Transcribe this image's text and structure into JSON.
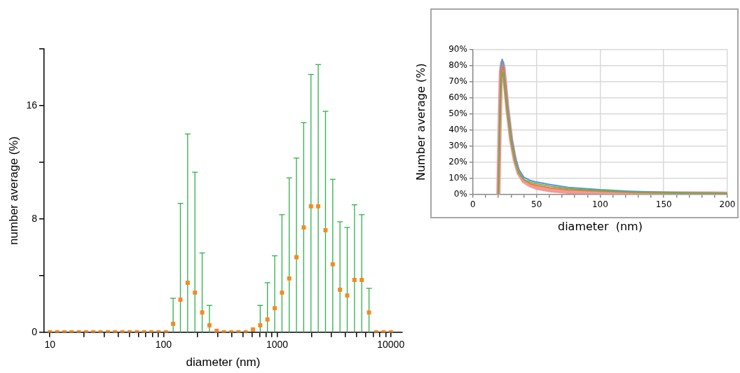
{
  "chart_data": [
    {
      "type": "scatter",
      "xlabel": "diameter (nm)",
      "ylabel": "number average (%)",
      "log": "x",
      "marker": "square",
      "color": "#f58a1f",
      "x": [
        10,
        11.6,
        13.4,
        15.5,
        18,
        20.8,
        24.1,
        27.9,
        32.4,
        37.5,
        43.4,
        50.3,
        58.3,
        67.5,
        78.2,
        90.6,
        105,
        121.5,
        140.8,
        163.1,
        188.9,
        218.8,
        253.4,
        293.6,
        340.1,
        393.9,
        456.2,
        528.5,
        612.2,
        709.1,
        821.3,
        951.3,
        1102,
        1276,
        1478,
        1712,
        1983,
        2297,
        2661,
        3082,
        3570,
        4135,
        4790,
        5548,
        6426,
        7443,
        8621,
        10000
      ],
      "values": [
        0,
        0,
        0,
        0,
        0,
        0,
        0,
        0,
        0,
        0,
        0,
        0,
        0,
        0,
        0,
        0,
        0,
        0.6,
        2.3,
        3.5,
        2.8,
        1.4,
        0.5,
        0.1,
        0,
        0,
        0,
        0,
        0.2,
        0.5,
        0.9,
        1.7,
        2.8,
        3.8,
        5.3,
        7.4,
        8.9,
        8.9,
        7.2,
        4.8,
        3.0,
        2.6,
        3.7,
        3.7,
        1.4,
        0,
        0,
        0
      ],
      "errors": [
        null,
        null,
        null,
        null,
        null,
        null,
        null,
        null,
        null,
        null,
        null,
        null,
        null,
        null,
        null,
        null,
        null,
        [
          0,
          2.4
        ],
        [
          0,
          9.1
        ],
        [
          0,
          14.0
        ],
        [
          0,
          11.3
        ],
        [
          0,
          5.6
        ],
        [
          0,
          1.9
        ],
        null,
        null,
        null,
        null,
        null,
        null,
        [
          0,
          1.9
        ],
        [
          0,
          3.5
        ],
        [
          0,
          5.4
        ],
        [
          0,
          8.3
        ],
        [
          0,
          10.9
        ],
        [
          0,
          12.3
        ],
        [
          0,
          14.8
        ],
        [
          0,
          18.2
        ],
        [
          0,
          18.9
        ],
        [
          0,
          15.6
        ],
        [
          0,
          10.8
        ],
        [
          0,
          7.8
        ],
        [
          0,
          7.4
        ],
        [
          0,
          9.0
        ],
        [
          0,
          8.3
        ],
        [
          0,
          3.1
        ],
        null,
        null,
        null
      ],
      "xlim": [
        8.9,
        12600
      ],
      "xticks": [
        10,
        {
          "value": 20,
          "label": null
        },
        {
          "value": 30,
          "label": null
        },
        {
          "value": 40,
          "label": null
        },
        {
          "value": 50,
          "label": null
        },
        {
          "value": 60,
          "label": null
        },
        {
          "value": 70,
          "label": null
        },
        {
          "value": 80,
          "label": null
        },
        {
          "value": 90,
          "label": null
        },
        100,
        {
          "value": 200,
          "label": null
        },
        {
          "value": 300,
          "label": null
        },
        {
          "value": 400,
          "label": null
        },
        {
          "value": 500,
          "label": null
        },
        {
          "value": 600,
          "label": null
        },
        {
          "value": 700,
          "label": null
        },
        {
          "value": 800,
          "label": null
        },
        {
          "value": 900,
          "label": null
        },
        1000,
        {
          "value": 2000,
          "label": null
        },
        {
          "value": 3000,
          "label": null
        },
        {
          "value": 4000,
          "label": null
        },
        {
          "value": 5000,
          "label": null
        },
        {
          "value": 6000,
          "label": null
        },
        {
          "value": 7000,
          "label": null
        },
        {
          "value": 8000,
          "label": null
        },
        {
          "value": 9000,
          "label": null
        },
        10000
      ],
      "ylim": [
        0,
        20
      ],
      "yticks": [
        0,
        {
          "value": 4,
          "label": null
        },
        8,
        {
          "value": 12,
          "label": null
        },
        16,
        {
          "value": 20,
          "label": null
        }
      ]
    },
    {
      "type": "line",
      "xlabel": "diameter  (nm)",
      "ylabel": "Number average (%)",
      "grid": true,
      "marker": "none",
      "series": [
        {
          "color": "#5b9bd5",
          "x": [
            20,
            21,
            22,
            23,
            24,
            25,
            27,
            30,
            33,
            36,
            40,
            45,
            50,
            60,
            75,
            100,
            125,
            150,
            175,
            200
          ],
          "values": [
            0,
            46,
            79,
            84,
            81,
            73,
            57,
            37,
            24,
            15.5,
            10.5,
            8.5,
            7.5,
            6,
            4.2,
            2.7,
            1.7,
            1.1,
            0.8,
            0.6
          ]
        },
        {
          "color": "#ed7d31",
          "x": [
            20,
            21,
            22,
            23,
            24,
            25,
            27,
            30,
            33,
            36,
            40,
            45,
            50,
            60,
            75,
            100,
            125,
            150,
            175,
            200
          ],
          "values": [
            0,
            40,
            73,
            80,
            77,
            69,
            53,
            34,
            21.5,
            13.5,
            9,
            6.5,
            5.5,
            4,
            2.7,
            1.8,
            1.1,
            0.7,
            0.5,
            0.4
          ]
        },
        {
          "color": "#70ad47",
          "x": [
            20,
            21,
            22,
            23,
            24,
            25,
            27,
            30,
            33,
            36,
            40,
            45,
            50,
            60,
            75,
            100,
            125,
            150,
            175,
            200
          ],
          "values": [
            0,
            34,
            66,
            76,
            73,
            65,
            50,
            32,
            20,
            13,
            9,
            7.5,
            6.5,
            5,
            3.4,
            2.2,
            1.3,
            0.9,
            0.6,
            0.4
          ]
        },
        {
          "color": "#f19a9a",
          "x": [
            20,
            21,
            22,
            23,
            24,
            25,
            27,
            30,
            33,
            36,
            40,
            45,
            50,
            60,
            75,
            100,
            125,
            150,
            175,
            200
          ],
          "values": [
            0,
            42,
            76,
            82,
            79,
            71,
            54,
            34,
            21,
            13,
            8,
            5.5,
            4,
            2.5,
            1.5,
            1,
            0.7,
            0.5,
            0.4,
            0.3
          ]
        }
      ],
      "xlim": [
        0,
        200
      ],
      "xticks": [
        0,
        {
          "value": 10,
          "label": null
        },
        {
          "value": 20,
          "label": null
        },
        {
          "value": 30,
          "label": null
        },
        {
          "value": 40,
          "label": null
        },
        50,
        {
          "value": 60,
          "label": null
        },
        {
          "value": 70,
          "label": null
        },
        {
          "value": 80,
          "label": null
        },
        {
          "value": 90,
          "label": null
        },
        100,
        {
          "value": 110,
          "label": null
        },
        {
          "value": 120,
          "label": null
        },
        {
          "value": 130,
          "label": null
        },
        {
          "value": 140,
          "label": null
        },
        150,
        {
          "value": 160,
          "label": null
        },
        {
          "value": 170,
          "label": null
        },
        {
          "value": 180,
          "label": null
        },
        {
          "value": 190,
          "label": null
        },
        200
      ],
      "ylim": [
        0,
        90
      ],
      "yticks": [
        {
          "value": 0,
          "label": "0%"
        },
        {
          "value": 10,
          "label": "10%"
        },
        {
          "value": 20,
          "label": "20%"
        },
        {
          "value": 30,
          "label": "30%"
        },
        {
          "value": 40,
          "label": "40%"
        },
        {
          "value": 50,
          "label": "50%"
        },
        {
          "value": 60,
          "label": "60%"
        },
        {
          "value": 70,
          "label": "70%"
        },
        {
          "value": 80,
          "label": "80%"
        },
        {
          "value": 90,
          "label": "90%"
        }
      ]
    }
  ]
}
